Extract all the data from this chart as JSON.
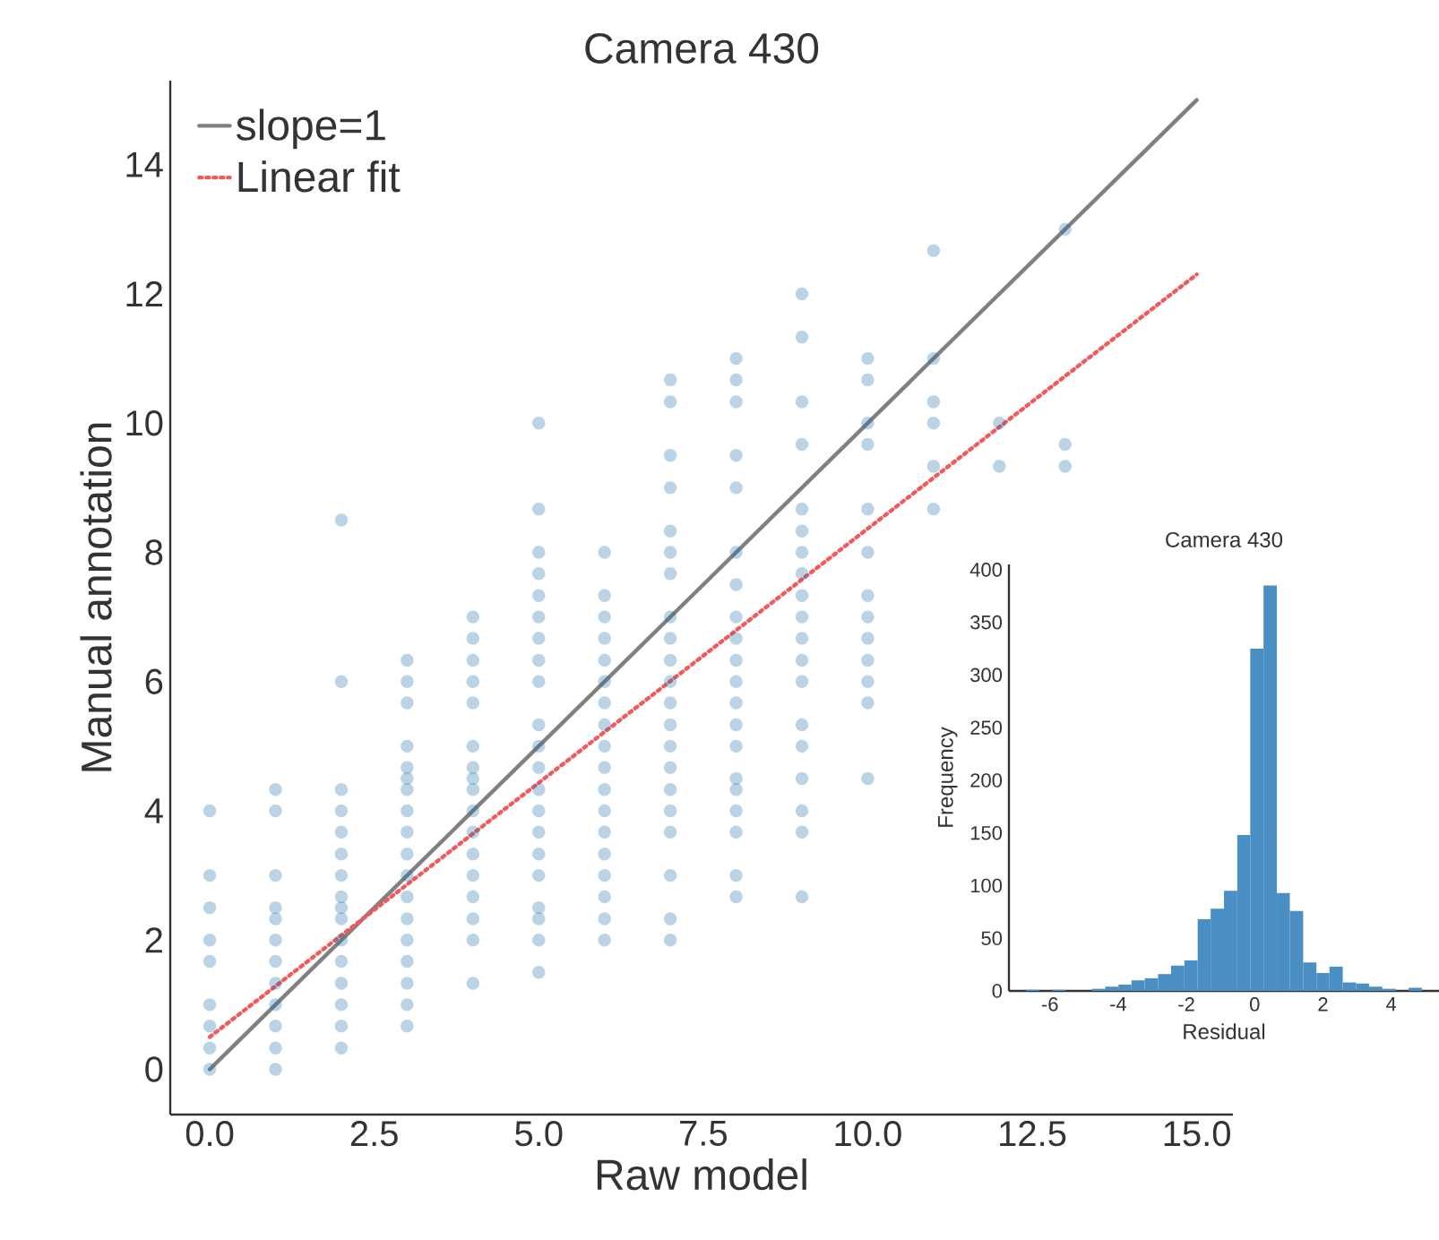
{
  "chart_data": [
    {
      "type": "scatter",
      "title": "Camera 430",
      "xlabel": "Raw model",
      "ylabel": "Manual annotation",
      "xlim": [
        -0.6,
        15.55
      ],
      "ylim": [
        -0.7,
        15.3
      ],
      "xticks": [
        {
          "value": 0,
          "label": "0.0"
        },
        {
          "value": 2.5,
          "label": "2.5"
        },
        {
          "value": 5,
          "label": "5.0"
        },
        {
          "value": 7.5,
          "label": "7.5"
        },
        {
          "value": 10,
          "label": "10.0"
        },
        {
          "value": 12.5,
          "label": "12.5"
        },
        {
          "value": 15,
          "label": "15.0"
        }
      ],
      "yticks": [
        0,
        2,
        4,
        6,
        8,
        10,
        12,
        14
      ],
      "grid": false,
      "legend": "top left",
      "series": [
        {
          "type": "scatter",
          "color": "#1f6fa8",
          "marker": "circle",
          "x": [
            0,
            0,
            0,
            0,
            0,
            0,
            0,
            0,
            0,
            1,
            1,
            1,
            1,
            1,
            1,
            1,
            1,
            1,
            1,
            1,
            1,
            2,
            2,
            2,
            2,
            2,
            2,
            2,
            2,
            2,
            2,
            2,
            2,
            2,
            2,
            2,
            2,
            3,
            3,
            3,
            3,
            3,
            3,
            3,
            3,
            3,
            3,
            3,
            3,
            3,
            3,
            3,
            3,
            3,
            3,
            4,
            4,
            4,
            4,
            4,
            4,
            4,
            4,
            4,
            4,
            4,
            4,
            4,
            4,
            4,
            4,
            4,
            5,
            5,
            5,
            5,
            5,
            5,
            5,
            5,
            5,
            5,
            5,
            5,
            5,
            5,
            5,
            5,
            5,
            5,
            5,
            5,
            5,
            6,
            6,
            6,
            6,
            6,
            6,
            6,
            6,
            6,
            6,
            6,
            6,
            6,
            6,
            6,
            6,
            6,
            6,
            7,
            7,
            7,
            7,
            7,
            7,
            7,
            7,
            7,
            7,
            7,
            7,
            7,
            7,
            7,
            7,
            7,
            7,
            7,
            7,
            7,
            8,
            8,
            8,
            8,
            8,
            8,
            8,
            8,
            8,
            8,
            8,
            8,
            8,
            8,
            8,
            8,
            8,
            8,
            8,
            8,
            9,
            9,
            9,
            9,
            9,
            9,
            9,
            9,
            9,
            9,
            9,
            9,
            9,
            9,
            9,
            9,
            9,
            9,
            9,
            10,
            10,
            10,
            10,
            10,
            10,
            10,
            10,
            10,
            10,
            10,
            10,
            10,
            11,
            11,
            11,
            11,
            11,
            11,
            12,
            12,
            13,
            13,
            13
          ],
          "values": [
            0,
            0.33,
            0.67,
            1,
            1.67,
            2,
            2.5,
            3,
            4,
            0,
            0.33,
            0.67,
            1,
            1.33,
            1.67,
            2,
            2.33,
            2.5,
            3,
            4,
            4.33,
            0.33,
            0.67,
            1,
            1.33,
            1.67,
            2,
            2.33,
            2.5,
            2.67,
            3,
            3.33,
            3.67,
            4,
            4.33,
            6,
            8.5,
            0.67,
            1,
            1.33,
            1.67,
            2,
            2.33,
            2.67,
            3,
            3.33,
            3.67,
            4,
            4.33,
            4.5,
            4.67,
            5,
            5.67,
            6,
            6.33,
            1.33,
            2,
            2.33,
            2.67,
            3,
            3.33,
            3.67,
            4,
            4.33,
            4.5,
            4.67,
            5,
            5.67,
            6,
            6.33,
            6.67,
            7,
            1.5,
            2,
            2.33,
            2.5,
            3,
            3.33,
            3.67,
            4,
            4.33,
            4.67,
            5,
            5.33,
            6,
            6.33,
            6.67,
            7,
            7.33,
            7.67,
            8,
            8.67,
            10,
            2,
            2.33,
            2.67,
            3,
            3.33,
            3.67,
            4,
            4.33,
            4.67,
            5,
            5.33,
            5.67,
            6,
            6.33,
            6.67,
            7,
            7.33,
            8,
            2,
            2.33,
            3,
            3.67,
            4,
            4.33,
            4.67,
            5,
            5.33,
            5.67,
            6,
            6.33,
            6.67,
            7,
            7.67,
            8,
            8.33,
            9,
            9.5,
            10.33,
            10.67,
            2.67,
            3,
            3.67,
            4,
            4.33,
            4.5,
            5,
            5.33,
            5.67,
            6,
            6.33,
            6.67,
            7,
            7.5,
            8,
            9,
            9.5,
            10.33,
            10.67,
            11,
            2.67,
            3.67,
            4,
            4.5,
            5,
            5.33,
            6,
            6.33,
            6.67,
            7,
            7.33,
            7.67,
            8,
            8.33,
            8.67,
            9.67,
            10.33,
            11.33,
            12,
            4.5,
            5.67,
            6,
            6.33,
            6.67,
            7,
            7.33,
            8,
            8.67,
            9.67,
            10,
            10.67,
            11,
            8.67,
            9.33,
            10,
            10.33,
            11,
            12.67,
            9.33,
            10,
            9.33,
            9.67,
            13
          ]
        },
        {
          "type": "line",
          "name": "slope=1",
          "color": "#808080",
          "line_style": "solid",
          "x": [
            0,
            15
          ],
          "values": [
            0,
            15
          ]
        },
        {
          "type": "line",
          "name": "Linear fit",
          "color": "#f05a5a",
          "line_style": "dotted",
          "x": [
            0,
            15
          ],
          "values": [
            0.5,
            12.3
          ]
        }
      ]
    },
    {
      "type": "histogram",
      "title": "Camera 430",
      "xlabel": "Residual",
      "ylabel": "Frequency",
      "xlim": [
        -7.2,
        5.4
      ],
      "ylim": [
        0,
        405
      ],
      "xticks": [
        -6,
        -4,
        -2,
        0,
        2,
        4
      ],
      "yticks": [
        0,
        50,
        100,
        150,
        200,
        250,
        300,
        350,
        400
      ],
      "grid": false,
      "color": "#4a8fc4",
      "bins": [
        -6.7,
        -6.31,
        -5.93,
        -5.54,
        -5.15,
        -4.77,
        -4.38,
        -3.99,
        -3.61,
        -3.22,
        -2.83,
        -2.45,
        -2.06,
        -1.67,
        -1.29,
        -0.9,
        -0.51,
        -0.13,
        0.26,
        0.65,
        1.03,
        1.42,
        1.81,
        2.19,
        2.58,
        2.97,
        3.35,
        3.74,
        4.13,
        4.51,
        4.9
      ],
      "values": [
        1,
        0,
        1,
        0,
        0,
        2,
        4,
        6,
        10,
        12,
        16,
        24,
        29,
        68,
        78,
        95,
        148,
        325,
        385,
        93,
        76,
        27,
        17,
        23,
        8,
        7,
        4,
        2,
        0,
        3
      ]
    }
  ]
}
